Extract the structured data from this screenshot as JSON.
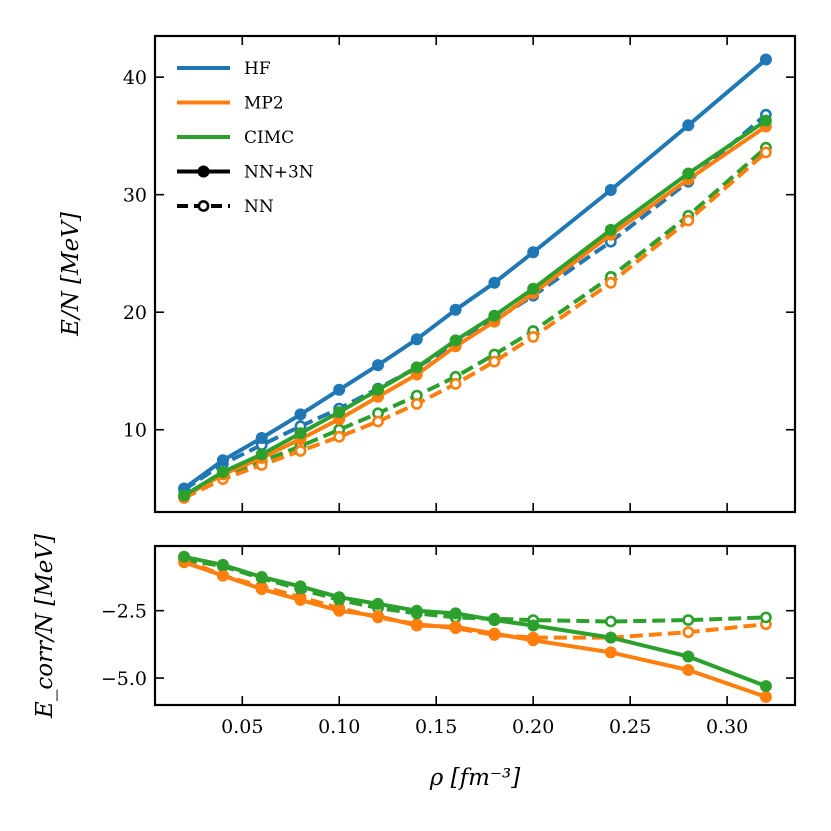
{
  "chart_data": [
    {
      "type": "line",
      "panel": "top",
      "xlabel": "",
      "ylabel": "E/N [MeV]",
      "xlim": [
        0.005,
        0.335
      ],
      "ylim": [
        3,
        43.5
      ],
      "yticks": [
        10,
        20,
        30,
        40
      ],
      "ytick_labels": [
        "10",
        "20",
        "30",
        "40"
      ],
      "x": [
        0.02,
        0.04,
        0.06,
        0.08,
        0.1,
        0.12,
        0.14,
        0.16,
        0.18,
        0.2,
        0.24,
        0.28,
        0.32
      ],
      "series": [
        {
          "name": "HF NN",
          "method": "HF",
          "variant": "NN",
          "color": "#1f77b4",
          "dashed": true,
          "values": [
            4.9,
            7.1,
            8.7,
            10.3,
            11.8,
            13.5,
            15.3,
            17.3,
            19.3,
            21.4,
            26.0,
            31.1,
            36.8
          ]
        },
        {
          "name": "CIMC NN",
          "method": "CIMC",
          "variant": "NN",
          "color": "#2ca02c",
          "dashed": true,
          "values": [
            4.3,
            6.1,
            7.3,
            8.6,
            10.0,
            11.4,
            12.9,
            14.5,
            16.4,
            18.4,
            23.0,
            28.2,
            34.0
          ]
        },
        {
          "name": "MP2 NN",
          "method": "MP2",
          "variant": "NN",
          "color": "#ff7f0e",
          "dashed": true,
          "values": [
            4.2,
            5.8,
            7.0,
            8.2,
            9.4,
            10.7,
            12.2,
            13.9,
            15.8,
            17.9,
            22.5,
            27.8,
            33.6
          ]
        },
        {
          "name": "HF NN+3N",
          "method": "HF",
          "variant": "NN+3N",
          "color": "#1f77b4",
          "dashed": false,
          "values": [
            5.0,
            7.4,
            9.3,
            11.3,
            13.4,
            15.5,
            17.7,
            20.2,
            22.5,
            25.1,
            30.4,
            35.9,
            41.5
          ]
        },
        {
          "name": "MP2 NN+3N",
          "method": "MP2",
          "variant": "NN+3N",
          "color": "#ff7f0e",
          "dashed": false,
          "values": [
            4.3,
            6.2,
            7.6,
            9.2,
            10.9,
            12.8,
            14.7,
            17.1,
            19.2,
            21.6,
            26.6,
            31.3,
            35.8
          ]
        },
        {
          "name": "CIMC NN+3N",
          "method": "CIMC",
          "variant": "NN+3N",
          "color": "#2ca02c",
          "dashed": false,
          "values": [
            4.4,
            6.4,
            7.9,
            9.7,
            11.5,
            13.4,
            15.3,
            17.6,
            19.7,
            22.0,
            27.0,
            31.8,
            36.3
          ]
        }
      ],
      "legend": {
        "position": "top-left",
        "entries": [
          {
            "label": "HF",
            "color": "#1f77b4",
            "style": "solid"
          },
          {
            "label": "MP2",
            "color": "#ff7f0e",
            "style": "solid"
          },
          {
            "label": "CIMC",
            "color": "#2ca02c",
            "style": "solid"
          },
          {
            "label": "NN+3N",
            "color": "#000000",
            "style": "solid-filled-marker"
          },
          {
            "label": "NN",
            "color": "#000000",
            "style": "dashed-open-marker"
          }
        ]
      }
    },
    {
      "type": "line",
      "panel": "bottom",
      "xlabel": "ρ [fm⁻³]",
      "ylabel": "E_corr/N [MeV]",
      "xlim": [
        0.005,
        0.335
      ],
      "ylim": [
        -6.0,
        -0.1
      ],
      "xticks": [
        0.05,
        0.1,
        0.15,
        0.2,
        0.25,
        0.3
      ],
      "xtick_labels": [
        "0.05",
        "0.10",
        "0.15",
        "0.20",
        "0.25",
        "0.30"
      ],
      "yticks": [
        -2.5,
        -5.0
      ],
      "ytick_labels": [
        "−2.5",
        "−5.0"
      ],
      "x": [
        0.02,
        0.04,
        0.06,
        0.08,
        0.1,
        0.12,
        0.14,
        0.16,
        0.18,
        0.2,
        0.24,
        0.28,
        0.32
      ],
      "series": [
        {
          "name": "MP2 NN",
          "method": "MP2",
          "variant": "NN",
          "color": "#ff7f0e",
          "dashed": true,
          "values": [
            -0.6,
            -1.2,
            -1.6,
            -2.0,
            -2.4,
            -2.75,
            -3.0,
            -3.15,
            -3.4,
            -3.5,
            -3.5,
            -3.3,
            -3.0
          ]
        },
        {
          "name": "CIMC NN",
          "method": "CIMC",
          "variant": "NN",
          "color": "#2ca02c",
          "dashed": true,
          "values": [
            -0.6,
            -0.85,
            -1.3,
            -1.7,
            -2.1,
            -2.4,
            -2.6,
            -2.75,
            -2.8,
            -2.85,
            -2.9,
            -2.85,
            -2.75
          ]
        },
        {
          "name": "MP2 NN+3N",
          "method": "MP2",
          "variant": "NN+3N",
          "color": "#ff7f0e",
          "dashed": false,
          "values": [
            -0.7,
            -1.2,
            -1.7,
            -2.1,
            -2.5,
            -2.7,
            -3.05,
            -3.1,
            -3.35,
            -3.6,
            -4.05,
            -4.7,
            -5.7
          ]
        },
        {
          "name": "CIMC NN+3N",
          "method": "CIMC",
          "variant": "NN+3N",
          "color": "#2ca02c",
          "dashed": false,
          "values": [
            -0.5,
            -0.8,
            -1.25,
            -1.6,
            -2.0,
            -2.25,
            -2.5,
            -2.6,
            -2.85,
            -3.05,
            -3.5,
            -4.2,
            -5.3
          ]
        }
      ]
    }
  ]
}
